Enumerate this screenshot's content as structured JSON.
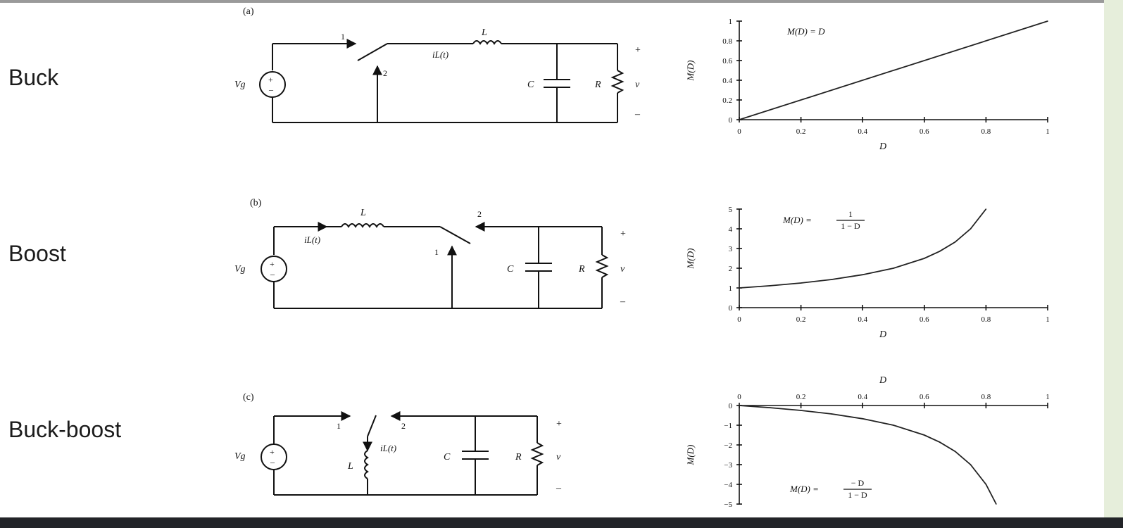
{
  "topologies": [
    {
      "name": "Buck",
      "tag": "(a)",
      "circuit": {
        "source": "Vg",
        "inductor": "L",
        "current": "iL(t)",
        "capacitor": "C",
        "resistor": "R",
        "output": "v",
        "plus": "+",
        "minus": "–",
        "switch_pos1": "1",
        "switch_pos2": "2"
      },
      "plot": {
        "xlabel": "D",
        "ylabel": "M(D)",
        "equation": "M(D) = D"
      }
    },
    {
      "name": "Boost",
      "tag": "(b)",
      "circuit": {
        "source": "Vg",
        "inductor": "L",
        "current": "iL(t)",
        "capacitor": "C",
        "resistor": "R",
        "output": "v",
        "plus": "+",
        "minus": "–",
        "switch_pos1": "1",
        "switch_pos2": "2"
      },
      "plot": {
        "xlabel": "D",
        "ylabel": "M(D)",
        "equation_lhs": "M(D) =",
        "equation_num": "1",
        "equation_den": "1 − D"
      }
    },
    {
      "name": "Buck-boost",
      "tag": "(c)",
      "circuit": {
        "source": "Vg",
        "inductor": "L",
        "current": "iL(t)",
        "capacitor": "C",
        "resistor": "R",
        "output": "v",
        "plus": "+",
        "minus": "–",
        "switch_pos1": "1",
        "switch_pos2": "2"
      },
      "plot": {
        "xlabel": "D",
        "ylabel": "M(D)",
        "equation_lhs": "M(D) =",
        "equation_num": "− D",
        "equation_den": "1 − D"
      }
    }
  ],
  "chart_data": [
    {
      "type": "line",
      "series": [
        {
          "x": [
            0,
            1
          ],
          "y": [
            0,
            1
          ]
        }
      ],
      "xlabel": "D",
      "ylabel": "M(D)",
      "xlim": [
        0,
        1
      ],
      "ylim": [
        0,
        1
      ],
      "xticks": [
        "0",
        "0.2",
        "0.4",
        "0.6",
        "0.8",
        "1"
      ],
      "yticks": [
        "0",
        "0.2",
        "0.4",
        "0.6",
        "0.8",
        "1"
      ],
      "annotation": "M(D) = D"
    },
    {
      "type": "line",
      "series": [
        {
          "x": [
            0,
            0.1,
            0.2,
            0.3,
            0.4,
            0.5,
            0.6,
            0.65,
            0.7,
            0.75,
            0.8
          ],
          "y": [
            1,
            1.11,
            1.25,
            1.43,
            1.67,
            2,
            2.5,
            2.86,
            3.33,
            4,
            5
          ]
        }
      ],
      "xlabel": "D",
      "ylabel": "M(D)",
      "xlim": [
        0,
        1
      ],
      "ylim": [
        0,
        5
      ],
      "xticks": [
        "0",
        "0.2",
        "0.4",
        "0.6",
        "0.8",
        "1"
      ],
      "yticks": [
        "0",
        "1",
        "2",
        "3",
        "4",
        "5"
      ],
      "annotation": "M(D) = 1 / (1 − D)"
    },
    {
      "type": "line",
      "series": [
        {
          "x": [
            0,
            0.1,
            0.2,
            0.3,
            0.4,
            0.5,
            0.6,
            0.65,
            0.7,
            0.75,
            0.8,
            0.833
          ],
          "y": [
            0,
            -0.11,
            -0.25,
            -0.43,
            -0.67,
            -1,
            -1.5,
            -1.86,
            -2.33,
            -3,
            -4,
            -5
          ]
        }
      ],
      "xlabel": "D",
      "ylabel": "M(D)",
      "xlim": [
        0,
        1
      ],
      "ylim": [
        -5,
        0
      ],
      "xticks": [
        "0",
        "0.2",
        "0.4",
        "0.6",
        "0.8",
        "1"
      ],
      "yticks": [
        "0",
        "−1",
        "−2",
        "−3",
        "−4",
        "−5"
      ],
      "xaxis_position": "top",
      "annotation": "M(D) = − D / (1 − D)"
    }
  ]
}
